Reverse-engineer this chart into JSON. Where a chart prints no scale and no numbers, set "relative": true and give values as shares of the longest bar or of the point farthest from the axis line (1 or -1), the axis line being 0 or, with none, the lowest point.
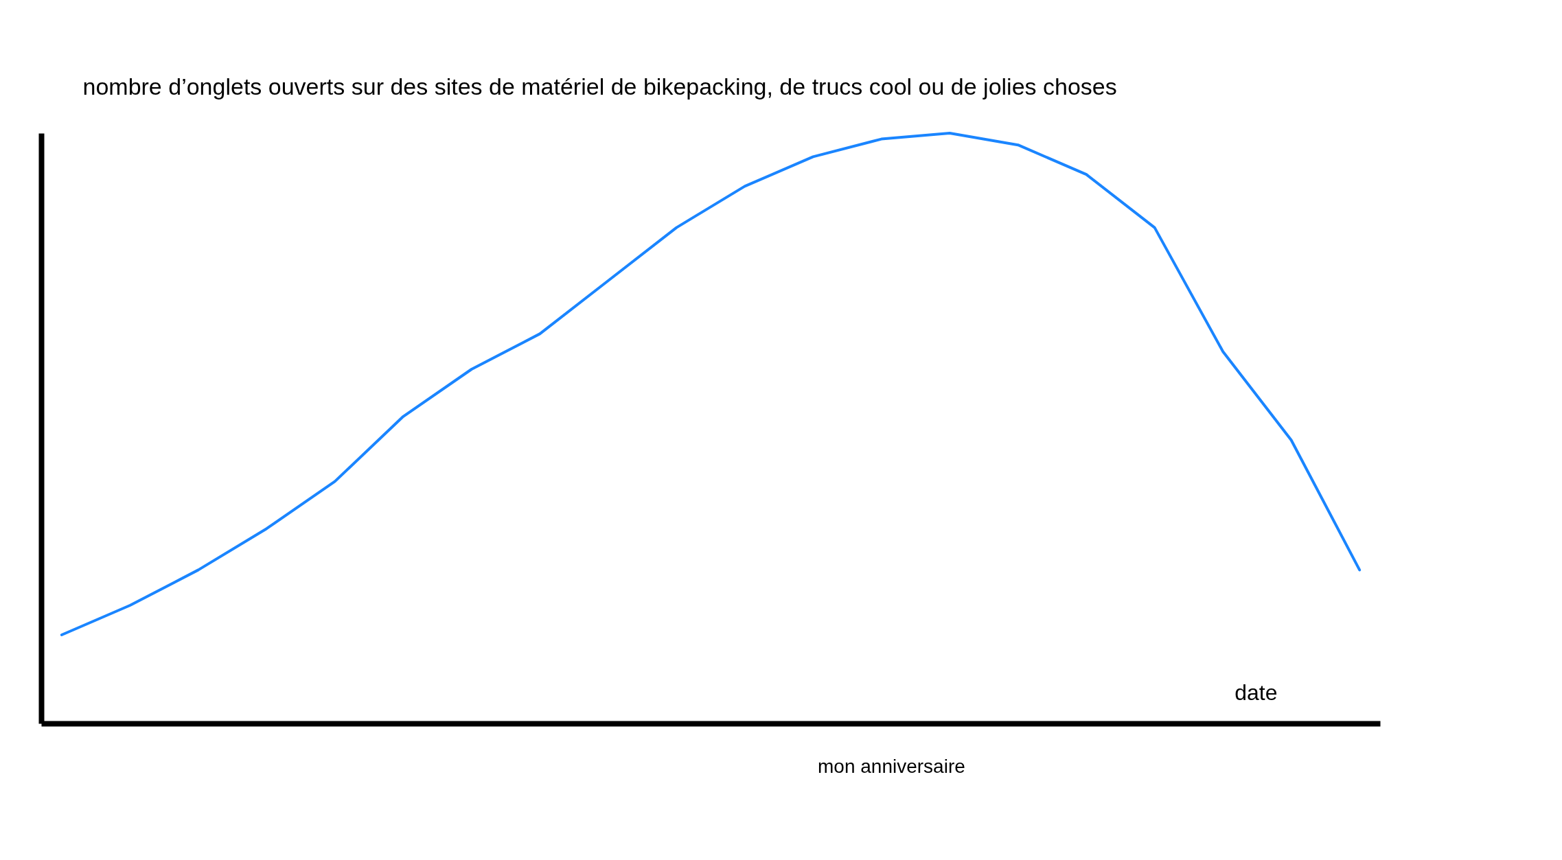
{
  "chart_data": {
    "type": "line",
    "relative": true,
    "ylabel": "nombre d’onglets ouverts sur des sites de matériel de bikepacking, de trucs cool ou de jolies choses",
    "xlabel": "date",
    "annotations": [
      "mon anniversaire"
    ],
    "categories": [
      null,
      null,
      null,
      null,
      null,
      null,
      null,
      null,
      null,
      null,
      null,
      null,
      null,
      null,
      null,
      null,
      null,
      null,
      null,
      null
    ],
    "series": [
      {
        "color": "#1a85ff",
        "values": [
          0.15,
          0.2,
          0.26,
          0.33,
          0.41,
          0.52,
          0.6,
          0.66,
          0.75,
          0.84,
          0.91,
          0.96,
          0.99,
          1.0,
          0.98,
          0.93,
          0.84,
          0.63,
          0.48,
          0.26
        ]
      }
    ],
    "grid": false
  }
}
